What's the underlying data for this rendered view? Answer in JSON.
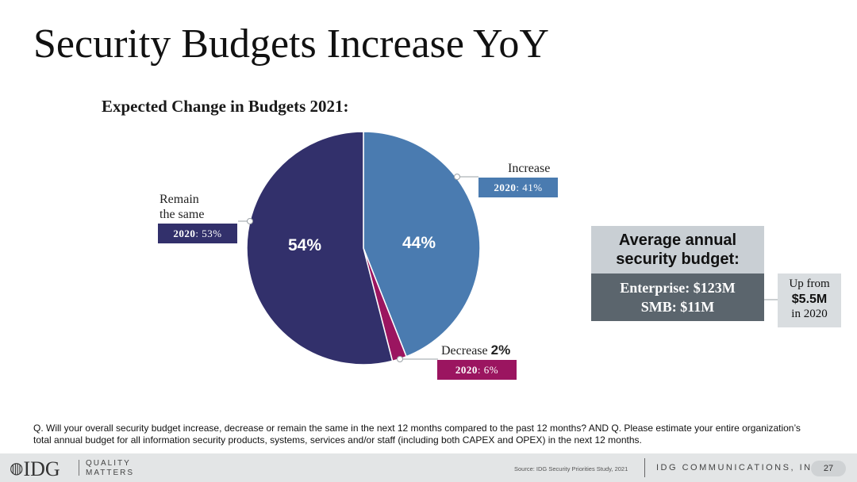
{
  "slide": {
    "title": "Security Budgets Increase YoY",
    "question_line1": "Q. Will your overall security budget increase, decrease or remain the same in the next 12 months compared to the past 12 months? AND Q. Please estimate your entire organization’s",
    "question_line2": "total annual budget for all information security products, systems, services and/or staff (including both CAPEX and OPEX) in the next 12 months."
  },
  "chart_data": {
    "type": "pie",
    "title": "Expected Change in Budgets 2021:",
    "categories": [
      "Increase",
      "Decrease",
      "Remain the same"
    ],
    "values": [
      44,
      2,
      54
    ],
    "value_labels": [
      "44%",
      "2%",
      "54%"
    ],
    "colors": [
      "#4a7bb0",
      "#9b1560",
      "#32306b"
    ],
    "prior_year": {
      "year": "2020",
      "increase": "41%",
      "decrease": "6%",
      "remain": "53%"
    },
    "labels": {
      "increase": "Increase",
      "decrease": "Decrease",
      "remain_line1": "Remain",
      "remain_line2": "the same"
    }
  },
  "budget_panel": {
    "heading_line1": "Average annual",
    "heading_line2": "security budget:",
    "enterprise": "Enterprise: $123M",
    "smb": "SMB: $11M",
    "upfrom_line1": "Up from",
    "upfrom_value": "$5.5M",
    "upfrom_line3": "in 2020"
  },
  "footer": {
    "logo": "IDG",
    "tagline_line1": "QUALITY",
    "tagline_line2": "MATTERS",
    "source": "Source: IDG Security Priorities Study, 2021",
    "company": "IDG COMMUNICATIONS, INC.",
    "page_number": "27"
  }
}
